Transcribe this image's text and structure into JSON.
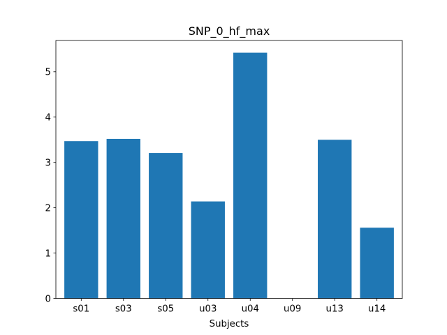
{
  "chart_data": {
    "type": "bar",
    "title": "SNP_0_hf_max",
    "xlabel": "Subjects",
    "ylabel": "",
    "categories": [
      "s01",
      "s03",
      "s05",
      "u03",
      "u04",
      "u09",
      "u13",
      "u14"
    ],
    "values": [
      3.47,
      3.52,
      3.21,
      2.14,
      5.42,
      0,
      3.5,
      1.56
    ],
    "ylim": [
      0,
      5.69
    ],
    "yticks": [
      0,
      1,
      2,
      3,
      4,
      5
    ],
    "grid": false,
    "legend": "none",
    "bar_color": "#1f77b4"
  }
}
